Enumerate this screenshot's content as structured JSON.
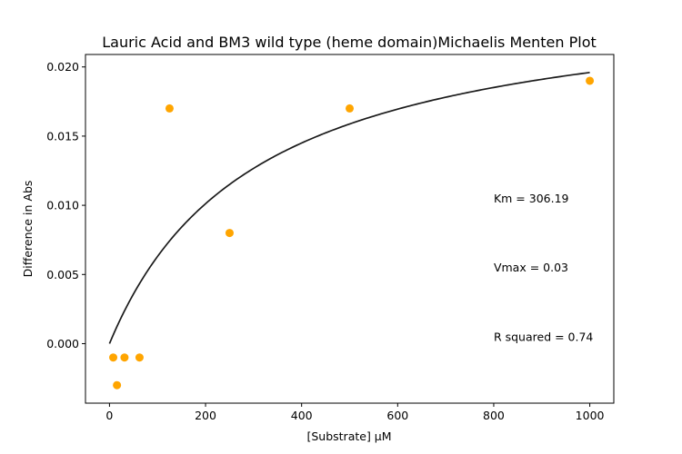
{
  "chart_data": {
    "type": "scatter",
    "title": "Lauric Acid and BM3 wild type (heme domain)Michaelis Menten Plot",
    "xlabel": "[Substrate] µM",
    "ylabel": "Difference in Abs",
    "xlim": [
      -50,
      1050
    ],
    "ylim": [
      -0.0043,
      0.0209
    ],
    "xticks": [
      0,
      200,
      400,
      600,
      800,
      1000
    ],
    "xtick_labels": [
      "0",
      "200",
      "400",
      "600",
      "800",
      "1000"
    ],
    "yticks": [
      0.0,
      0.005,
      0.01,
      0.015,
      0.02
    ],
    "ytick_labels": [
      "0.000",
      "0.005",
      "0.010",
      "0.015",
      "0.020"
    ],
    "grid": false,
    "series": [
      {
        "type": "scatter",
        "color": "#FFA500",
        "x": [
          7.8,
          15.6,
          31.25,
          62.5,
          125,
          250,
          500,
          1000
        ],
        "y": [
          -0.001,
          -0.003,
          -0.001,
          -0.001,
          0.017,
          0.008,
          0.017,
          0.019
        ]
      },
      {
        "type": "line",
        "color": "#1a1a1a",
        "model": "michaelis-menten",
        "Km": 306.19,
        "Vmax": 0.0256,
        "x_range": [
          0,
          1000
        ]
      }
    ],
    "annotations": [
      {
        "text": "Km = 306.19",
        "x": 800,
        "y": 0.0102
      },
      {
        "text": "Vmax = 0.03",
        "x": 800,
        "y": 0.0052
      },
      {
        "text": "R squared = 0.74",
        "x": 800,
        "y": 0.0002
      }
    ]
  }
}
